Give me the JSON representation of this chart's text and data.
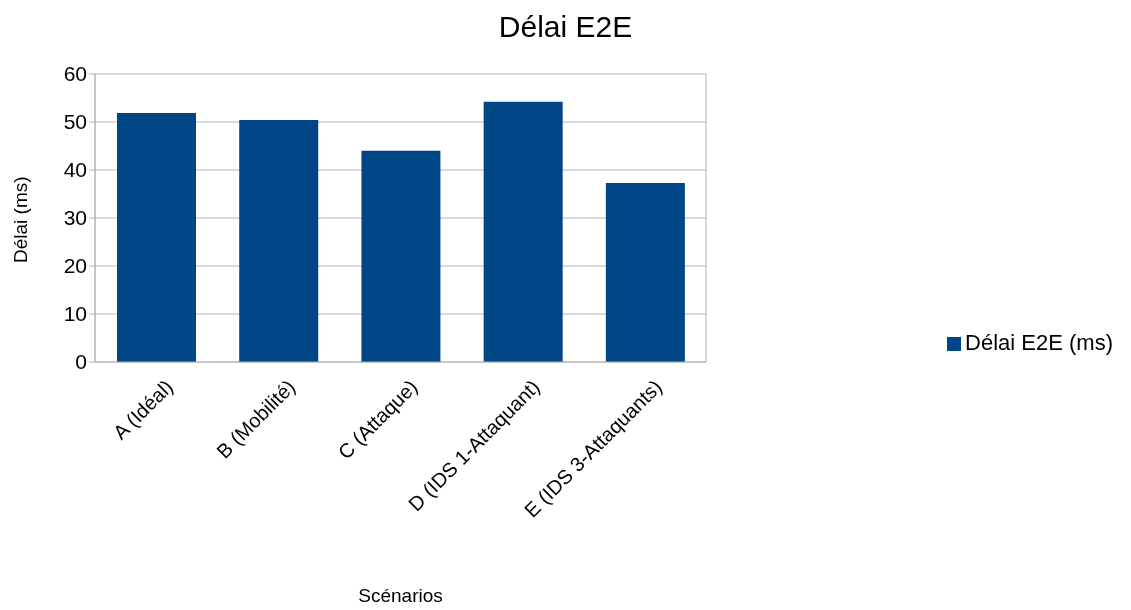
{
  "chart_data": {
    "type": "bar",
    "title": "Délai E2E",
    "xlabel": "Scénarios",
    "ylabel": "Délai (ms)",
    "categories": [
      "A (Idéal)",
      "B (Mobilité)",
      "C (Attaque)",
      "D (IDS 1-Attaquant)",
      "E (IDS 3-Attaquants)"
    ],
    "series": [
      {
        "name": "Délai E2E (ms)",
        "color": "#004586",
        "values": [
          51.9,
          50.4,
          44.0,
          54.2,
          37.3
        ]
      }
    ],
    "ylim": [
      0,
      60
    ],
    "yticks": [
      0,
      10,
      20,
      30,
      40,
      50,
      60
    ],
    "grid": "y",
    "legend": "right"
  }
}
